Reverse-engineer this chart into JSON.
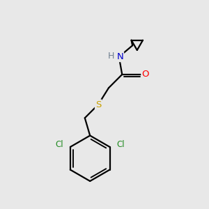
{
  "background_color": "#e8e8e8",
  "atom_colors": {
    "C": "#000000",
    "H": "#708090",
    "N": "#0000cd",
    "O": "#ff0000",
    "S": "#c8a000",
    "Cl": "#228b22"
  },
  "bond_color": "#000000",
  "bond_width": 1.6,
  "figsize": [
    3.0,
    3.0
  ],
  "dpi": 100
}
